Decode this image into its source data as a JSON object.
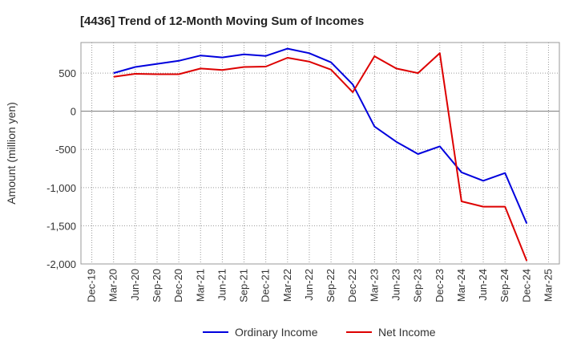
{
  "chart_data": {
    "type": "line",
    "title": "[4436]  Trend of 12-Month Moving Sum of Incomes",
    "xlabel": "",
    "ylabel": "Amount (million yen)",
    "ylim": [
      -2000,
      900
    ],
    "yticks": [
      500,
      0,
      -500,
      -1000,
      -1500,
      -2000
    ],
    "ytick_labels": [
      "500",
      "0",
      "-500",
      "-1,000",
      "-1,500",
      "-2,000"
    ],
    "categories": [
      "Dec-19",
      "Mar-20",
      "Jun-20",
      "Sep-20",
      "Dec-20",
      "Mar-21",
      "Jun-21",
      "Sep-21",
      "Dec-21",
      "Mar-22",
      "Jun-22",
      "Sep-22",
      "Dec-22",
      "Mar-23",
      "Jun-23",
      "Sep-23",
      "Dec-23",
      "Mar-24",
      "Jun-24",
      "Sep-24",
      "Dec-24",
      "Mar-25"
    ],
    "grid": true,
    "legend_position": "bottom-center",
    "series": [
      {
        "name": "Ordinary Income",
        "color": "#0000dd",
        "values": [
          null,
          500,
          580,
          620,
          660,
          730,
          705,
          745,
          725,
          820,
          760,
          640,
          350,
          -200,
          -400,
          -560,
          -460,
          -800,
          -910,
          -810,
          -1470,
          null
        ]
      },
      {
        "name": "Net Income",
        "color": "#dd0000",
        "values": [
          null,
          450,
          490,
          485,
          485,
          560,
          540,
          580,
          585,
          700,
          650,
          545,
          250,
          720,
          560,
          500,
          760,
          -1180,
          -1250,
          -1250,
          -1960,
          null
        ]
      }
    ]
  }
}
